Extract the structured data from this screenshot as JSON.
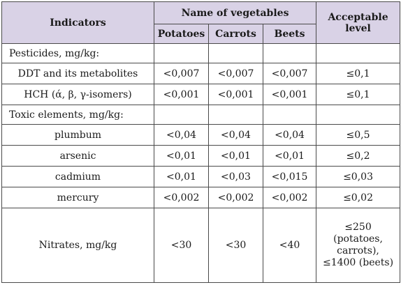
{
  "header": {
    "indicators": "Indicators",
    "group": "Name of vegetables",
    "acceptable": "Acceptable level",
    "columns": [
      "Potatoes",
      "Carrots",
      "Beets"
    ]
  },
  "rows": [
    {
      "label": "Pesticides, mg/kg:",
      "section": true,
      "values": [
        "",
        "",
        "",
        ""
      ]
    },
    {
      "label": "DDT and its metabolites",
      "section": false,
      "values": [
        "<0,007",
        "<0,007",
        "<0,007",
        "≤0,1"
      ]
    },
    {
      "label": "HCH (ά, β, γ-isomers)",
      "section": false,
      "values": [
        "<0,001",
        "<0,001",
        "<0,001",
        "≤0,1"
      ]
    },
    {
      "label": "Toxic elements, mg/kg:",
      "section": true,
      "values": [
        "",
        "",
        "",
        ""
      ]
    },
    {
      "label": "plumbum",
      "section": false,
      "values": [
        "<0,04",
        "<0,04",
        "<0,04",
        "≤0,5"
      ]
    },
    {
      "label": "arsenic",
      "section": false,
      "values": [
        "<0,01",
        "<0,01",
        "<0,01",
        "≤0,2"
      ]
    },
    {
      "label": "cadmium",
      "section": false,
      "values": [
        "<0,01",
        "<0,03",
        "<0,015",
        "≤0,03"
      ]
    },
    {
      "label": "mercury",
      "section": false,
      "values": [
        "<0,002",
        "<0,002",
        "<0,002",
        "≤0,02"
      ]
    },
    {
      "label": "Nitrates, mg/kg",
      "section": false,
      "values": [
        "<30",
        "<30",
        "<40",
        "≤250 (potatoes, carrots), ≤1400 (beets)"
      ]
    }
  ]
}
